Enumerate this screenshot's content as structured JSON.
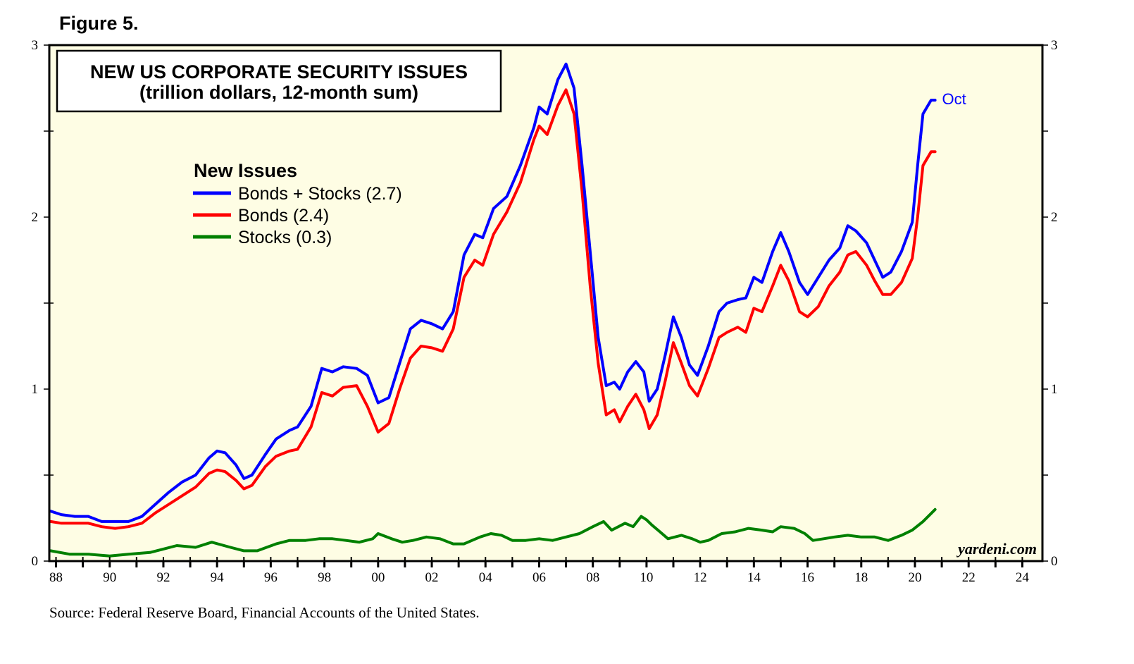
{
  "figure_label": "Figure 5.",
  "source": "Source: Federal Reserve Board, Financial Accounts of the United States.",
  "watermark": "yardeni.com",
  "colors": {
    "background": "#fefde4",
    "bonds_plus_stocks": "#0000ff",
    "bonds": "#ff0000",
    "stocks": "#008000"
  },
  "chart_data": {
    "type": "line",
    "title": "NEW US CORPORATE SECURITY ISSUES",
    "subtitle": "(trillion dollars, 12-month sum)",
    "legend_title": "New Issues",
    "legend_position": "upper-left",
    "xlim": [
      1987.75,
      2024.75
    ],
    "ylim": [
      0,
      3
    ],
    "x_ticks": [
      1988,
      1990,
      1992,
      1994,
      1996,
      1998,
      2000,
      2002,
      2004,
      2006,
      2008,
      2010,
      2012,
      2014,
      2016,
      2018,
      2020,
      2022,
      2024
    ],
    "x_tick_labels": [
      "88",
      "90",
      "92",
      "94",
      "96",
      "98",
      "00",
      "02",
      "04",
      "06",
      "08",
      "10",
      "12",
      "14",
      "16",
      "18",
      "20",
      "22",
      "24"
    ],
    "y_ticks": [
      0,
      1,
      2,
      3
    ],
    "y_tick_labels": [
      "0",
      "1",
      "2",
      "3"
    ],
    "annotation": {
      "text": "Oct",
      "x": 2020.8,
      "y": 2.68
    },
    "series": [
      {
        "name": "Bonds + Stocks (2.7)",
        "key": "bonds_plus_stocks",
        "points": [
          [
            1987.8,
            0.29
          ],
          [
            1988.2,
            0.27
          ],
          [
            1988.7,
            0.26
          ],
          [
            1989.2,
            0.26
          ],
          [
            1989.7,
            0.23
          ],
          [
            1990.2,
            0.23
          ],
          [
            1990.7,
            0.23
          ],
          [
            1991.2,
            0.26
          ],
          [
            1991.7,
            0.33
          ],
          [
            1992.2,
            0.4
          ],
          [
            1992.7,
            0.46
          ],
          [
            1993.2,
            0.5
          ],
          [
            1993.7,
            0.6
          ],
          [
            1994.0,
            0.64
          ],
          [
            1994.3,
            0.63
          ],
          [
            1994.7,
            0.56
          ],
          [
            1995.0,
            0.48
          ],
          [
            1995.3,
            0.5
          ],
          [
            1995.8,
            0.62
          ],
          [
            1996.2,
            0.71
          ],
          [
            1996.7,
            0.76
          ],
          [
            1997.0,
            0.78
          ],
          [
            1997.5,
            0.9
          ],
          [
            1997.9,
            1.12
          ],
          [
            1998.3,
            1.1
          ],
          [
            1998.7,
            1.13
          ],
          [
            1999.2,
            1.12
          ],
          [
            1999.6,
            1.08
          ],
          [
            2000.0,
            0.92
          ],
          [
            2000.4,
            0.95
          ],
          [
            2000.8,
            1.15
          ],
          [
            2001.2,
            1.35
          ],
          [
            2001.6,
            1.4
          ],
          [
            2002.0,
            1.38
          ],
          [
            2002.4,
            1.35
          ],
          [
            2002.8,
            1.45
          ],
          [
            2003.2,
            1.78
          ],
          [
            2003.6,
            1.9
          ],
          [
            2003.9,
            1.88
          ],
          [
            2004.3,
            2.05
          ],
          [
            2004.8,
            2.12
          ],
          [
            2005.3,
            2.3
          ],
          [
            2005.8,
            2.52
          ],
          [
            2006.0,
            2.64
          ],
          [
            2006.3,
            2.6
          ],
          [
            2006.7,
            2.8
          ],
          [
            2007.0,
            2.89
          ],
          [
            2007.3,
            2.75
          ],
          [
            2007.6,
            2.3
          ],
          [
            2007.9,
            1.8
          ],
          [
            2008.2,
            1.3
          ],
          [
            2008.5,
            1.02
          ],
          [
            2008.8,
            1.04
          ],
          [
            2009.0,
            1.0
          ],
          [
            2009.3,
            1.1
          ],
          [
            2009.6,
            1.16
          ],
          [
            2009.9,
            1.1
          ],
          [
            2010.1,
            0.93
          ],
          [
            2010.4,
            1.0
          ],
          [
            2010.7,
            1.2
          ],
          [
            2011.0,
            1.42
          ],
          [
            2011.3,
            1.3
          ],
          [
            2011.6,
            1.14
          ],
          [
            2011.9,
            1.08
          ],
          [
            2012.3,
            1.25
          ],
          [
            2012.7,
            1.45
          ],
          [
            2013.0,
            1.5
          ],
          [
            2013.4,
            1.52
          ],
          [
            2013.7,
            1.53
          ],
          [
            2014.0,
            1.65
          ],
          [
            2014.3,
            1.62
          ],
          [
            2014.7,
            1.8
          ],
          [
            2015.0,
            1.91
          ],
          [
            2015.3,
            1.8
          ],
          [
            2015.7,
            1.62
          ],
          [
            2016.0,
            1.55
          ],
          [
            2016.4,
            1.65
          ],
          [
            2016.8,
            1.75
          ],
          [
            2017.2,
            1.82
          ],
          [
            2017.5,
            1.95
          ],
          [
            2017.8,
            1.92
          ],
          [
            2018.2,
            1.85
          ],
          [
            2018.5,
            1.75
          ],
          [
            2018.8,
            1.65
          ],
          [
            2019.1,
            1.68
          ],
          [
            2019.5,
            1.8
          ],
          [
            2019.9,
            1.97
          ],
          [
            2020.1,
            2.3
          ],
          [
            2020.3,
            2.6
          ],
          [
            2020.6,
            2.68
          ],
          [
            2020.75,
            2.68
          ]
        ]
      },
      {
        "name": "Bonds (2.4)",
        "key": "bonds",
        "points": [
          [
            1987.8,
            0.23
          ],
          [
            1988.2,
            0.22
          ],
          [
            1988.7,
            0.22
          ],
          [
            1989.2,
            0.22
          ],
          [
            1989.7,
            0.2
          ],
          [
            1990.2,
            0.19
          ],
          [
            1990.7,
            0.2
          ],
          [
            1991.2,
            0.22
          ],
          [
            1991.7,
            0.28
          ],
          [
            1992.2,
            0.33
          ],
          [
            1992.7,
            0.38
          ],
          [
            1993.2,
            0.43
          ],
          [
            1993.7,
            0.51
          ],
          [
            1994.0,
            0.53
          ],
          [
            1994.3,
            0.52
          ],
          [
            1994.7,
            0.47
          ],
          [
            1995.0,
            0.42
          ],
          [
            1995.3,
            0.44
          ],
          [
            1995.8,
            0.55
          ],
          [
            1996.2,
            0.61
          ],
          [
            1996.7,
            0.64
          ],
          [
            1997.0,
            0.65
          ],
          [
            1997.5,
            0.78
          ],
          [
            1997.9,
            0.98
          ],
          [
            1998.3,
            0.96
          ],
          [
            1998.7,
            1.01
          ],
          [
            1999.2,
            1.02
          ],
          [
            1999.6,
            0.9
          ],
          [
            2000.0,
            0.75
          ],
          [
            2000.4,
            0.8
          ],
          [
            2000.8,
            1.0
          ],
          [
            2001.2,
            1.18
          ],
          [
            2001.6,
            1.25
          ],
          [
            2002.0,
            1.24
          ],
          [
            2002.4,
            1.22
          ],
          [
            2002.8,
            1.35
          ],
          [
            2003.2,
            1.65
          ],
          [
            2003.6,
            1.75
          ],
          [
            2003.9,
            1.72
          ],
          [
            2004.3,
            1.9
          ],
          [
            2004.8,
            2.03
          ],
          [
            2005.3,
            2.2
          ],
          [
            2005.8,
            2.45
          ],
          [
            2006.0,
            2.53
          ],
          [
            2006.3,
            2.48
          ],
          [
            2006.7,
            2.65
          ],
          [
            2007.0,
            2.74
          ],
          [
            2007.3,
            2.6
          ],
          [
            2007.6,
            2.15
          ],
          [
            2007.9,
            1.6
          ],
          [
            2008.2,
            1.15
          ],
          [
            2008.5,
            0.85
          ],
          [
            2008.8,
            0.88
          ],
          [
            2009.0,
            0.81
          ],
          [
            2009.3,
            0.9
          ],
          [
            2009.6,
            0.97
          ],
          [
            2009.9,
            0.88
          ],
          [
            2010.1,
            0.77
          ],
          [
            2010.4,
            0.85
          ],
          [
            2010.7,
            1.05
          ],
          [
            2011.0,
            1.27
          ],
          [
            2011.3,
            1.15
          ],
          [
            2011.6,
            1.02
          ],
          [
            2011.9,
            0.96
          ],
          [
            2012.3,
            1.12
          ],
          [
            2012.7,
            1.3
          ],
          [
            2013.0,
            1.33
          ],
          [
            2013.4,
            1.36
          ],
          [
            2013.7,
            1.33
          ],
          [
            2014.0,
            1.47
          ],
          [
            2014.3,
            1.45
          ],
          [
            2014.7,
            1.6
          ],
          [
            2015.0,
            1.72
          ],
          [
            2015.3,
            1.63
          ],
          [
            2015.7,
            1.45
          ],
          [
            2016.0,
            1.42
          ],
          [
            2016.4,
            1.48
          ],
          [
            2016.8,
            1.6
          ],
          [
            2017.2,
            1.68
          ],
          [
            2017.5,
            1.78
          ],
          [
            2017.8,
            1.8
          ],
          [
            2018.2,
            1.72
          ],
          [
            2018.5,
            1.63
          ],
          [
            2018.8,
            1.55
          ],
          [
            2019.1,
            1.55
          ],
          [
            2019.5,
            1.62
          ],
          [
            2019.9,
            1.76
          ],
          [
            2020.1,
            2.0
          ],
          [
            2020.3,
            2.3
          ],
          [
            2020.6,
            2.38
          ],
          [
            2020.75,
            2.38
          ]
        ]
      },
      {
        "name": "Stocks (0.3)",
        "key": "stocks",
        "points": [
          [
            1987.8,
            0.06
          ],
          [
            1988.5,
            0.04
          ],
          [
            1989.2,
            0.04
          ],
          [
            1990.0,
            0.03
          ],
          [
            1990.7,
            0.04
          ],
          [
            1991.5,
            0.05
          ],
          [
            1992.0,
            0.07
          ],
          [
            1992.5,
            0.09
          ],
          [
            1993.2,
            0.08
          ],
          [
            1993.8,
            0.11
          ],
          [
            1994.5,
            0.08
          ],
          [
            1995.0,
            0.06
          ],
          [
            1995.5,
            0.06
          ],
          [
            1996.2,
            0.1
          ],
          [
            1996.7,
            0.12
          ],
          [
            1997.3,
            0.12
          ],
          [
            1997.8,
            0.13
          ],
          [
            1998.3,
            0.13
          ],
          [
            1998.8,
            0.12
          ],
          [
            1999.3,
            0.11
          ],
          [
            1999.8,
            0.13
          ],
          [
            2000.0,
            0.16
          ],
          [
            2000.5,
            0.13
          ],
          [
            2000.9,
            0.11
          ],
          [
            2001.3,
            0.12
          ],
          [
            2001.8,
            0.14
          ],
          [
            2002.3,
            0.13
          ],
          [
            2002.8,
            0.1
          ],
          [
            2003.2,
            0.1
          ],
          [
            2003.8,
            0.14
          ],
          [
            2004.2,
            0.16
          ],
          [
            2004.6,
            0.15
          ],
          [
            2005.0,
            0.12
          ],
          [
            2005.5,
            0.12
          ],
          [
            2006.0,
            0.13
          ],
          [
            2006.5,
            0.12
          ],
          [
            2007.0,
            0.14
          ],
          [
            2007.5,
            0.16
          ],
          [
            2008.0,
            0.2
          ],
          [
            2008.4,
            0.23
          ],
          [
            2008.7,
            0.18
          ],
          [
            2009.2,
            0.22
          ],
          [
            2009.5,
            0.2
          ],
          [
            2009.8,
            0.26
          ],
          [
            2010.0,
            0.24
          ],
          [
            2010.2,
            0.21
          ],
          [
            2010.5,
            0.17
          ],
          [
            2010.8,
            0.13
          ],
          [
            2011.3,
            0.15
          ],
          [
            2011.7,
            0.13
          ],
          [
            2012.0,
            0.11
          ],
          [
            2012.3,
            0.12
          ],
          [
            2012.8,
            0.16
          ],
          [
            2013.3,
            0.17
          ],
          [
            2013.8,
            0.19
          ],
          [
            2014.3,
            0.18
          ],
          [
            2014.7,
            0.17
          ],
          [
            2015.0,
            0.2
          ],
          [
            2015.5,
            0.19
          ],
          [
            2015.9,
            0.16
          ],
          [
            2016.2,
            0.12
          ],
          [
            2016.6,
            0.13
          ],
          [
            2017.0,
            0.14
          ],
          [
            2017.5,
            0.15
          ],
          [
            2018.0,
            0.14
          ],
          [
            2018.5,
            0.14
          ],
          [
            2019.0,
            0.12
          ],
          [
            2019.5,
            0.15
          ],
          [
            2019.9,
            0.18
          ],
          [
            2020.3,
            0.23
          ],
          [
            2020.75,
            0.3
          ]
        ]
      }
    ]
  }
}
